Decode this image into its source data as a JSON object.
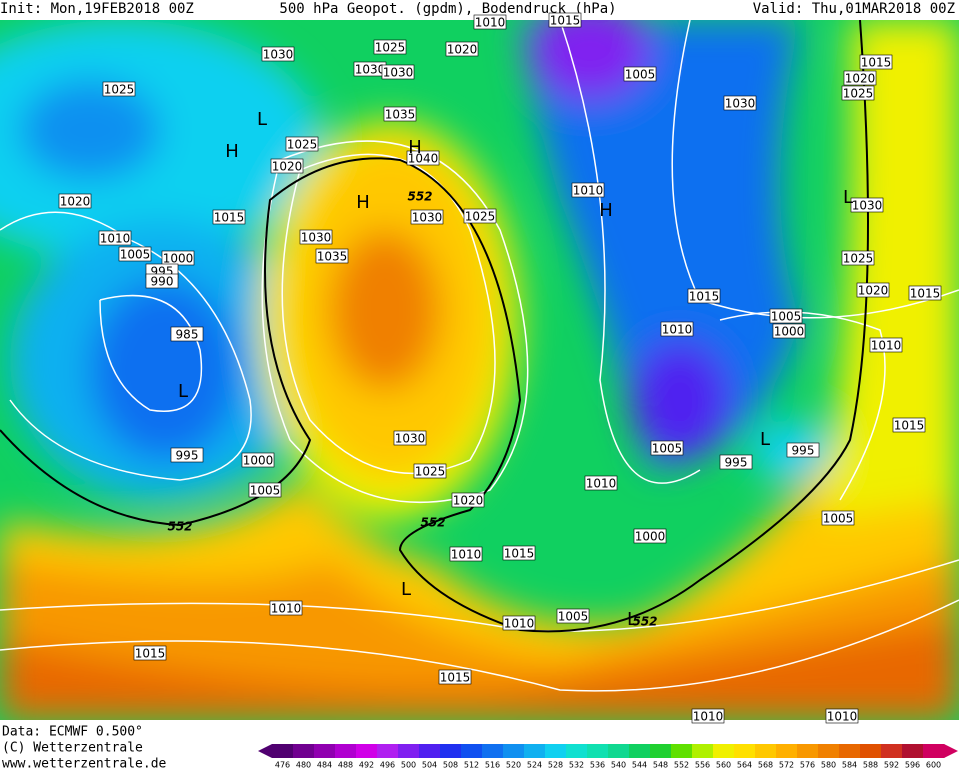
{
  "header": {
    "init": "Init: Mon,19FEB2018 00Z",
    "title": "500 hPa Geopot. (gpdm), Bodendruck (hPa)",
    "valid": "Valid: Thu,01MAR2018 00Z"
  },
  "footer": {
    "data": "Data: ECMWF   0.500°",
    "copyright": "(C) Wetterzentrale",
    "url": "www.wetterzentrale.de"
  },
  "colorbar": {
    "ticks": [
      476,
      480,
      484,
      488,
      492,
      496,
      500,
      504,
      508,
      512,
      516,
      520,
      524,
      528,
      532,
      536,
      540,
      544,
      548,
      552,
      556,
      560,
      564,
      568,
      572,
      576,
      580,
      584,
      588,
      592,
      596,
      600
    ],
    "colors": [
      "#500070",
      "#700090",
      "#9000b0",
      "#b000d0",
      "#d000e8",
      "#b020f0",
      "#8020f0",
      "#5020f0",
      "#2030f0",
      "#1050f0",
      "#1070f0",
      "#1090f0",
      "#10b0f0",
      "#10d0f0",
      "#10e0d0",
      "#10e0b0",
      "#10d890",
      "#10d060",
      "#20d030",
      "#60e000",
      "#b0f000",
      "#f0f000",
      "#ffe000",
      "#ffc800",
      "#ffb000",
      "#f89800",
      "#f08000",
      "#e86800",
      "#e05000",
      "#d03020",
      "#b01030",
      "#d00060"
    ]
  },
  "isobar_labels": [
    "1030",
    "1025",
    "1020",
    "1030",
    "1030",
    "1010",
    "1015",
    "1005",
    "1030",
    "1015",
    "1020",
    "1025",
    "1025",
    "1025",
    "1020",
    "1035",
    "1040",
    "1020",
    "1015",
    "1030",
    "1025",
    "1010",
    "1030",
    "1010",
    "1030",
    "1005",
    "1000",
    "1035",
    "995",
    "990",
    "1025",
    "1020",
    "1015",
    "1015",
    "1010",
    "1005",
    "1000",
    "1010",
    "985",
    "1030",
    "995",
    "1000",
    "1005",
    "995",
    "995",
    "1025",
    "1015",
    "1005",
    "1010",
    "1020",
    "1005",
    "1000",
    "1010",
    "1015",
    "1010",
    "1005",
    "1010",
    "1015",
    "1015",
    "1010",
    "1010"
  ],
  "centers": [
    "H",
    "L",
    "H",
    "H",
    "H",
    "L",
    "L",
    "L",
    "L",
    "L"
  ],
  "contour_552": [
    "552",
    "552",
    "552",
    "552"
  ]
}
